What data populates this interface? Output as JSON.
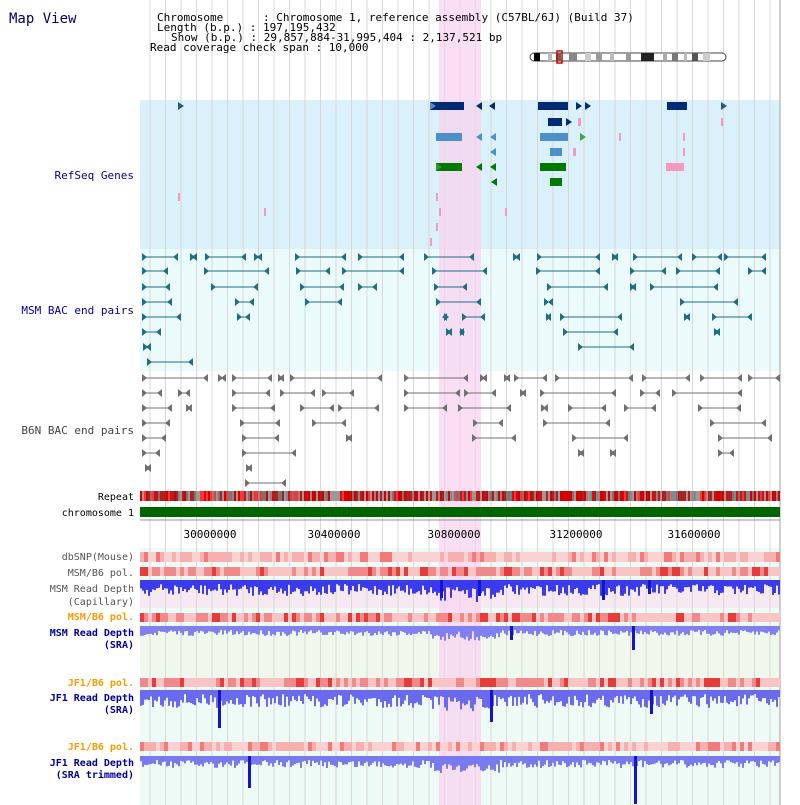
{
  "app": {
    "title": "Map View"
  },
  "info": {
    "lines": [
      "Chromosome      : Chromosome 1, reference assembly (C57BL/6J) (Build 37)",
      "Length (b.p.) : 197,195,432",
      "Show (b.p.) : 29,857,884-31,995,404 : 2,137,521 bp",
      "Read coverage check span : 10,000"
    ]
  },
  "tracks": {
    "refseq": "RefSeq Genes",
    "msm_bac": "MSM BAC end pairs",
    "b6n_bac": "B6N BAC end pairs",
    "repeat": "Repeat",
    "chromosome": "chromosome 1",
    "dbsnp": "dbSNP(Mouse)",
    "msm_b6_pol_1": "MSM/B6 pol.",
    "msm_depth_cap_1": "MSM Read Depth",
    "msm_depth_cap_2": "(Capillary)",
    "msm_b6_pol_2": "MSM/B6 pol.",
    "msm_depth_sra_1": "MSM Read Depth",
    "msm_depth_sra_2": "(SRA)",
    "jf1_b6_pol_1": "JF1/B6 pol.",
    "jf1_depth_sra_1": "JF1 Read Depth",
    "jf1_depth_sra_2": "(SRA)",
    "jf1_b6_pol_2": "JF1/B6 pol.",
    "jf1_depth_trim_1": "JF1 Read Depth",
    "jf1_depth_trim_2": "(SRA trimmed)"
  },
  "ruler": {
    "ticks": [
      "30000000",
      "30400000",
      "30800000",
      "31200000",
      "31600000"
    ]
  },
  "colors": {
    "refseq_bg": "#daf0fa",
    "bac_bg": "#ebfafa",
    "highlight": "#f8d4f0",
    "label_navy": "#00009c",
    "label_orange": "#ff9900",
    "chromosome_bar": "#006400",
    "gene_dark": "#002b73",
    "gene_mid": "#4d8fc8",
    "gene_green": "#007a00",
    "gene_pink": "#f49ac0",
    "bac_msm": "#1f6e86",
    "bac_b6n": "#707070",
    "depth_dark": "#2a2ae8",
    "depth_light": "#7a7af0"
  }
}
